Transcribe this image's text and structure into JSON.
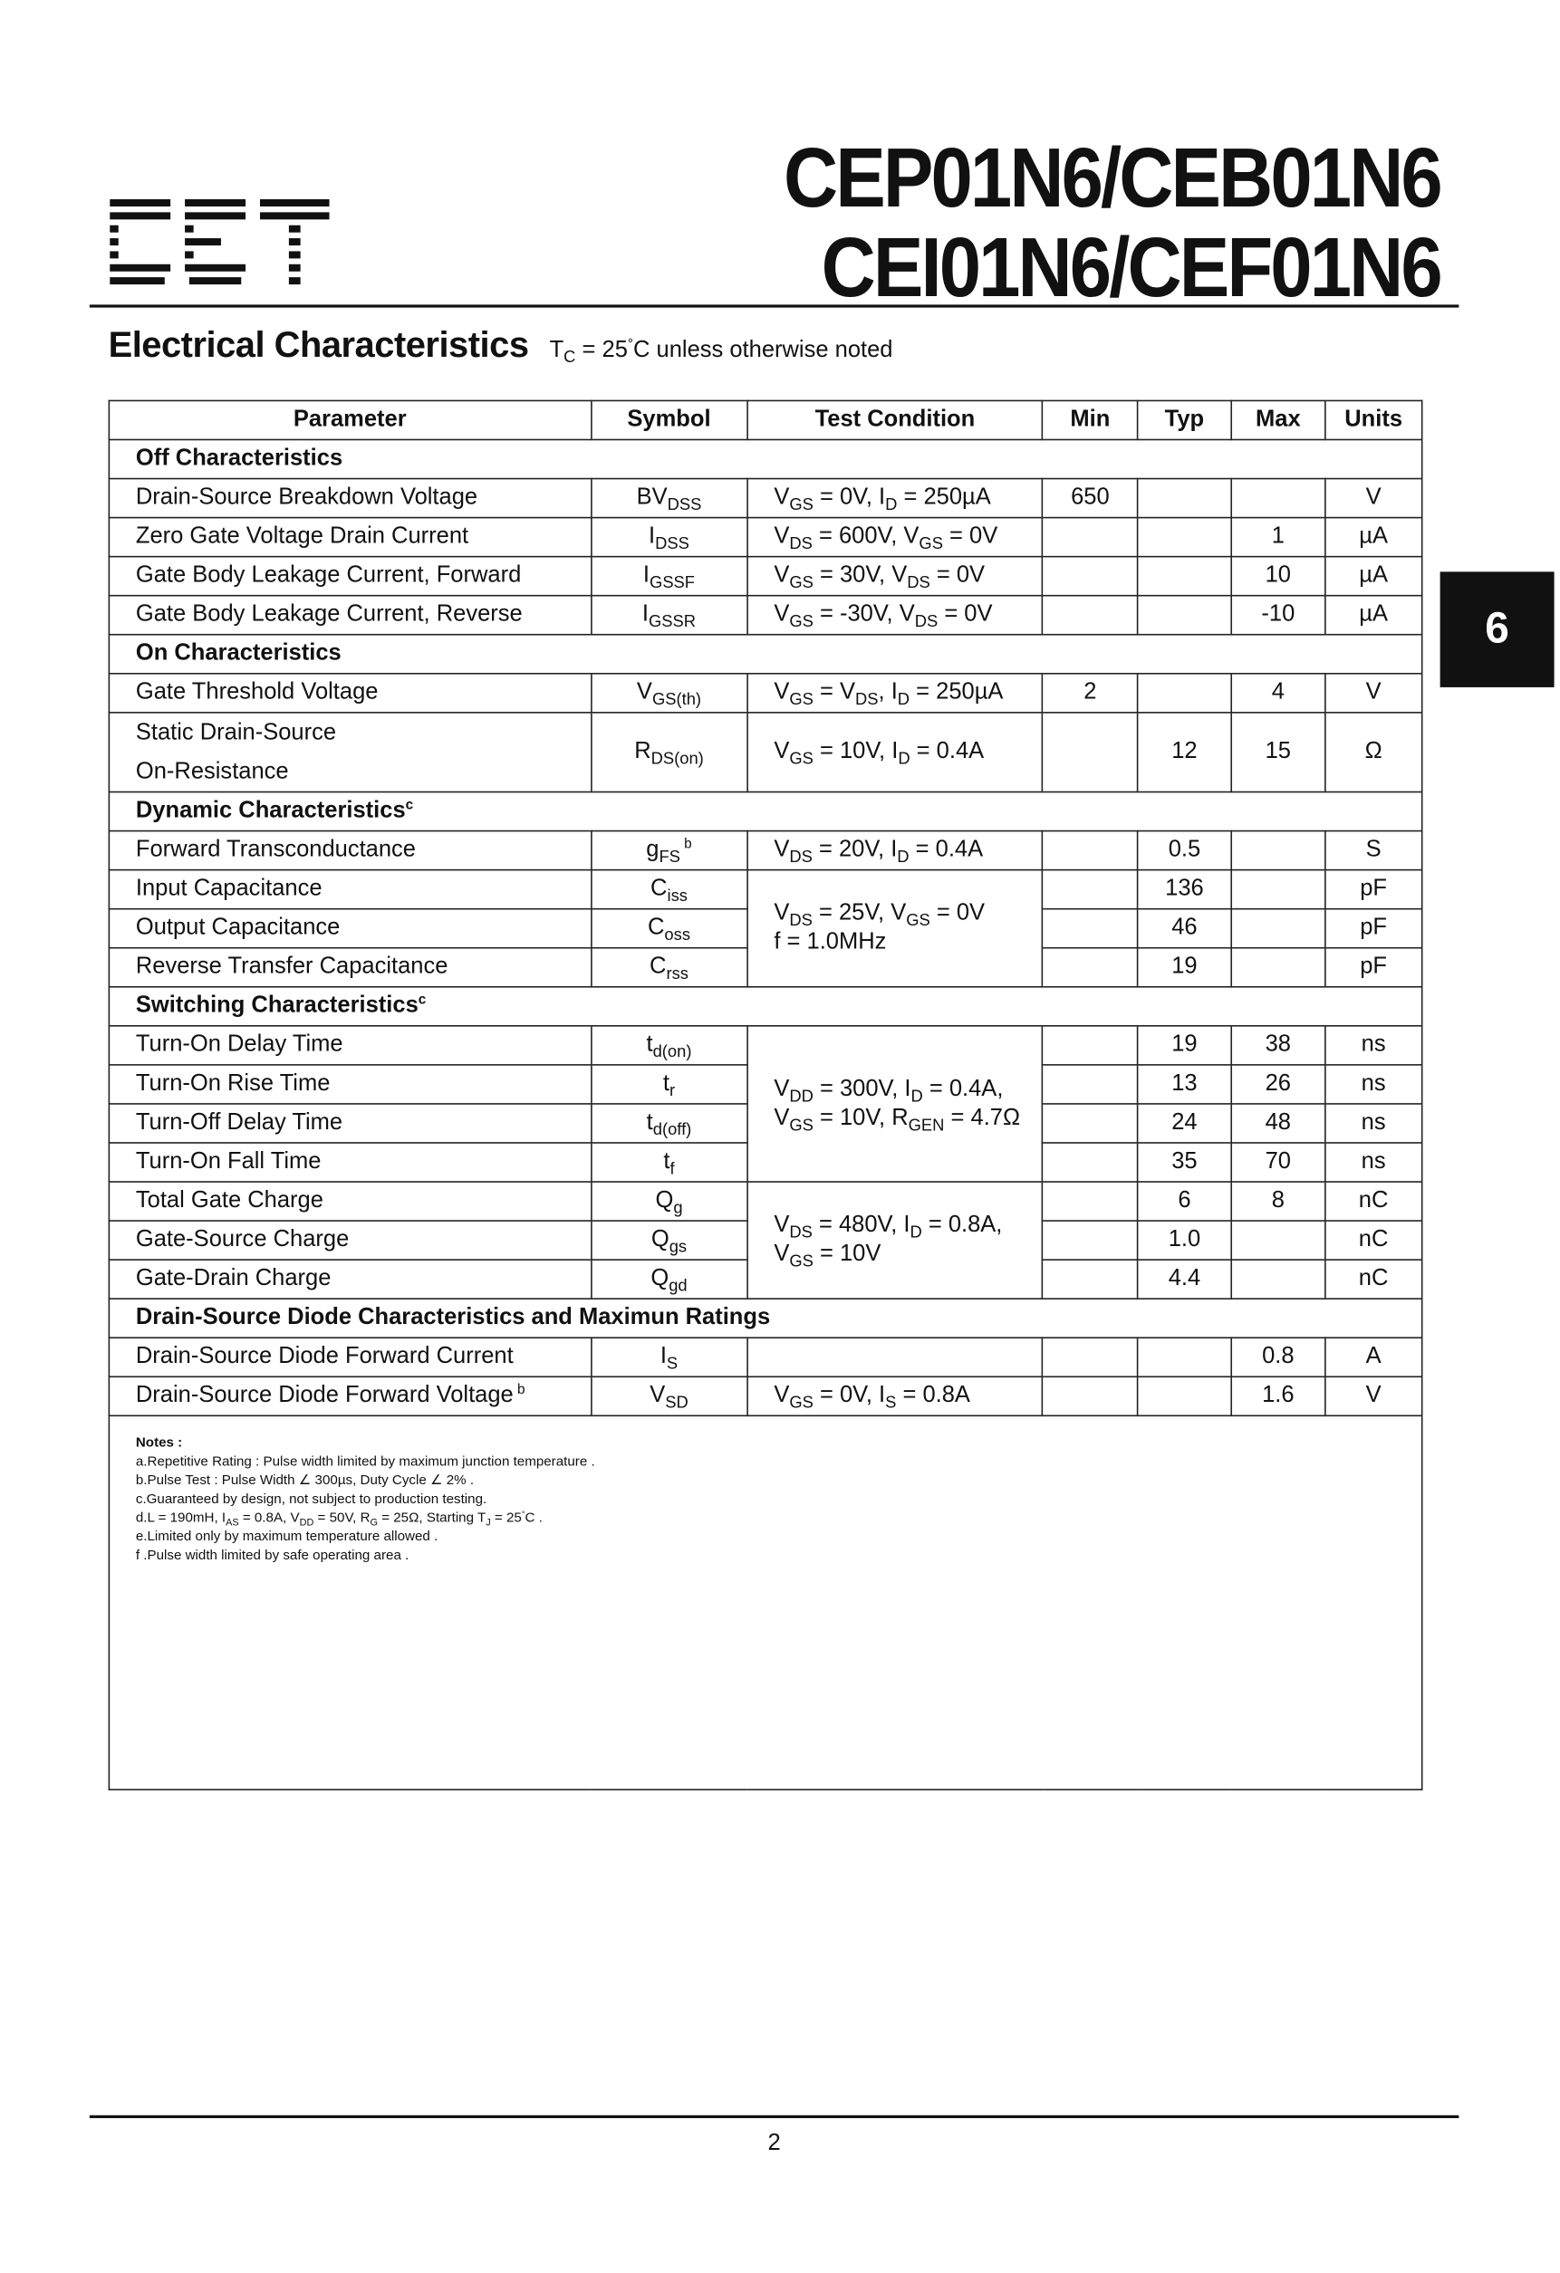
{
  "header": {
    "title_line1": "CEP01N6/CEB01N6",
    "title_line2": "CEI01N6/CEF01N6",
    "logo_text": "CET"
  },
  "section": {
    "heading": "Electrical Characteristics",
    "condition": "T_{C} = 25^{°}C unless otherwise noted"
  },
  "side_tab": "6",
  "table": {
    "columns": [
      "Parameter",
      "Symbol",
      "Test Condition",
      "Min",
      "Typ",
      "Max",
      "Units"
    ],
    "sections": {
      "off": "Off Characteristics",
      "on": "On Characteristics",
      "dynamic": "Dynamic Characteristics^{c}",
      "switching": "Switching Characteristics^{c}",
      "diode": "Drain-Source Diode Characteristics and Maximun Ratings"
    },
    "rows": [
      {
        "param": "Drain-Source Breakdown Voltage",
        "symbol": "BV_{DSS}",
        "cond": "V_{GS} = 0V, I_{D} = 250µA",
        "min": "650",
        "typ": "",
        "max": "",
        "units": "V"
      },
      {
        "param": "Zero Gate Voltage Drain Current",
        "symbol": "I_{DSS}",
        "cond": "V_{DS} = 600V, V_{GS} = 0V",
        "min": "",
        "typ": "",
        "max": "1",
        "units": "µA"
      },
      {
        "param": "Gate Body Leakage Current, Forward",
        "symbol": "I_{GSSF}",
        "cond": "V_{GS} =  30V, V_{DS} = 0V",
        "min": "",
        "typ": "",
        "max": "10",
        "units": "µA"
      },
      {
        "param": "Gate Body Leakage Current, Reverse",
        "symbol": "I_{GSSR}",
        "cond": "V_{GS} = -30V, V_{DS} = 0V",
        "min": "",
        "typ": "",
        "max": "-10",
        "units": "µA"
      },
      {
        "param": "Gate Threshold Voltage",
        "symbol": "V_{GS(th)}",
        "cond": "V_{GS} = V_{DS}, I_{D} = 250µA",
        "min": "2",
        "typ": "",
        "max": "4",
        "units": "V"
      },
      {
        "param": "Static Drain-Source",
        "param2": "On-Resistance",
        "symbol": "R_{DS(on)}",
        "cond": "V_{GS} = 10V, I_{D} = 0.4A",
        "min": "",
        "typ": "12",
        "max": "15",
        "units": "Ω"
      },
      {
        "param": "Forward Transconductance",
        "symbol": "g_{FS}^{ b}",
        "cond": "V_{DS} = 20V, I_{D} = 0.4A",
        "min": "",
        "typ": "0.5",
        "max": "",
        "units": "S"
      },
      {
        "param": "Input Capacitance",
        "symbol": "C_{iss}",
        "cond": "V_{DS} = 25V, V_{GS} = 0V",
        "cond2": "f = 1.0MHz",
        "min": "",
        "typ": "136",
        "max": "",
        "units": "pF"
      },
      {
        "param": "Output Capacitance",
        "symbol": "C_{oss}",
        "min": "",
        "typ": "46",
        "max": "",
        "units": "pF"
      },
      {
        "param": "Reverse Transfer Capacitance",
        "symbol": "C_{rss}",
        "min": "",
        "typ": "19",
        "max": "",
        "units": "pF"
      },
      {
        "param": "Turn-On Delay Time",
        "symbol": "t_{d(on)}",
        "cond": "V_{DD} = 300V, I_{D} = 0.4A,",
        "cond2": "V_{GS} = 10V, R_{GEN} = 4.7Ω",
        "min": "",
        "typ": "19",
        "max": "38",
        "units": "ns"
      },
      {
        "param": "Turn-On Rise Time",
        "symbol": "t_{r}",
        "min": "",
        "typ": "13",
        "max": "26",
        "units": "ns"
      },
      {
        "param": "Turn-Off Delay Time",
        "symbol": "t_{d(off)}",
        "min": "",
        "typ": "24",
        "max": "48",
        "units": "ns"
      },
      {
        "param": "Turn-On Fall Time",
        "symbol": "t_{f}",
        "min": "",
        "typ": "35",
        "max": "70",
        "units": "ns"
      },
      {
        "param": "Total Gate Charge",
        "symbol": "Q_{g}",
        "cond": "V_{DS} = 480V, I_{D} = 0.8A,",
        "cond2": "V_{GS} = 10V",
        "min": "",
        "typ": "6",
        "max": "8",
        "units": "nC"
      },
      {
        "param": "Gate-Source Charge",
        "symbol": "Q_{gs}",
        "min": "",
        "typ": "1.0",
        "max": "",
        "units": "nC"
      },
      {
        "param": "Gate-Drain Charge",
        "symbol": "Q_{gd}",
        "min": "",
        "typ": "4.4",
        "max": "",
        "units": "nC"
      },
      {
        "param": "Drain-Source Diode Forward Current",
        "symbol": "I_{S}",
        "cond": "",
        "min": "",
        "typ": "",
        "max": "0.8",
        "units": "A"
      },
      {
        "param": "Drain-Source Diode Forward Voltage^{ b}",
        "symbol": "V_{SD}",
        "cond": "V_{GS} = 0V, I_{S} = 0.8A",
        "min": "",
        "typ": "",
        "max": "1.6",
        "units": "V"
      }
    ]
  },
  "notes": {
    "title": "Notes :",
    "items": [
      "a.Repetitive Rating : Pulse width limited by maximum junction temperature .",
      "b.Pulse Test : Pulse Width ∠ 300µs, Duty Cycle ∠ 2% .",
      "c.Guaranteed by design, not subject to production testing.",
      "d.L = 190mH, I_{AS} = 0.8A, V_{DD} = 50V, R_{G} = 25Ω, Starting T_{J} = 25^{°}C .",
      "e.Limited only by maximum temperature allowed .",
      "f .Pulse width limited by safe operating area ."
    ]
  },
  "footer": {
    "page_number": "2"
  }
}
